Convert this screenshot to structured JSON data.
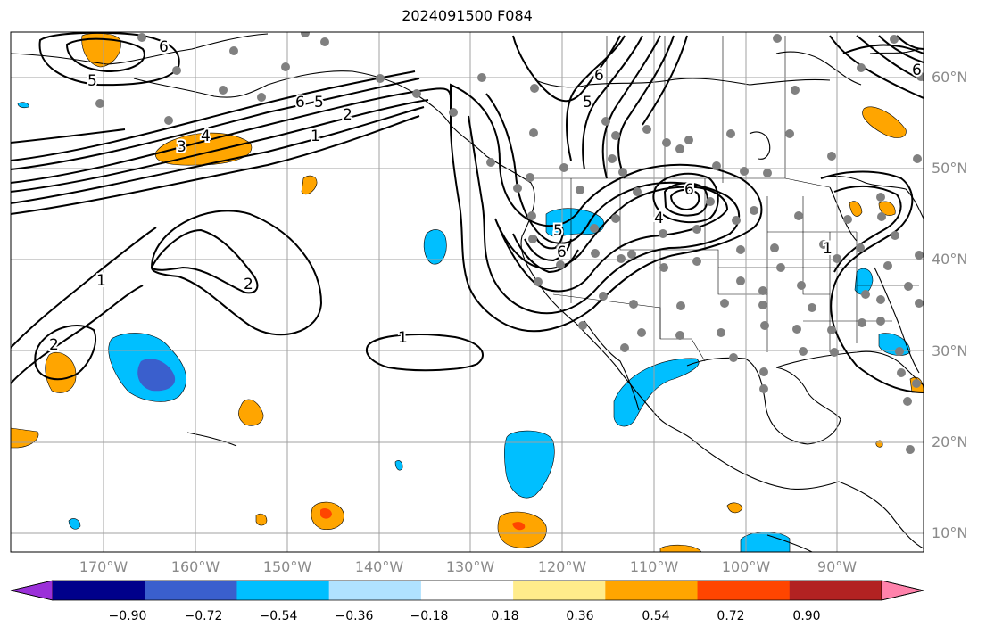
{
  "title": "2024091500 F084",
  "lat_labels": [
    "60°N",
    "50°N",
    "40°N",
    "30°N",
    "20°N",
    "10°N"
  ],
  "lon_labels": [
    "170°W",
    "160°W",
    "150°W",
    "140°W",
    "130°W",
    "120°W",
    "110°W",
    "100°W",
    "90°W"
  ],
  "colorbar": {
    "ticks": [
      "−0.90",
      "−0.72",
      "−0.54",
      "−0.36",
      "−0.18",
      "0.18",
      "0.36",
      "0.54",
      "0.72",
      "0.90"
    ],
    "colors": [
      "#9b30d9",
      "#00008b",
      "#3a5fcd",
      "#00bfff",
      "#b0e2ff",
      "#ffffff",
      "#ffec8b",
      "#ffa500",
      "#ff4500",
      "#b22222",
      "#ff82ab"
    ]
  },
  "contour_labels": [
    "5",
    "6",
    "3",
    "4",
    "6",
    "5",
    "2",
    "1",
    "1",
    "2",
    "2",
    "1",
    "5",
    "6",
    "6",
    "4",
    "6",
    "5",
    "6",
    "1"
  ],
  "station_marker_color": "#808080"
}
